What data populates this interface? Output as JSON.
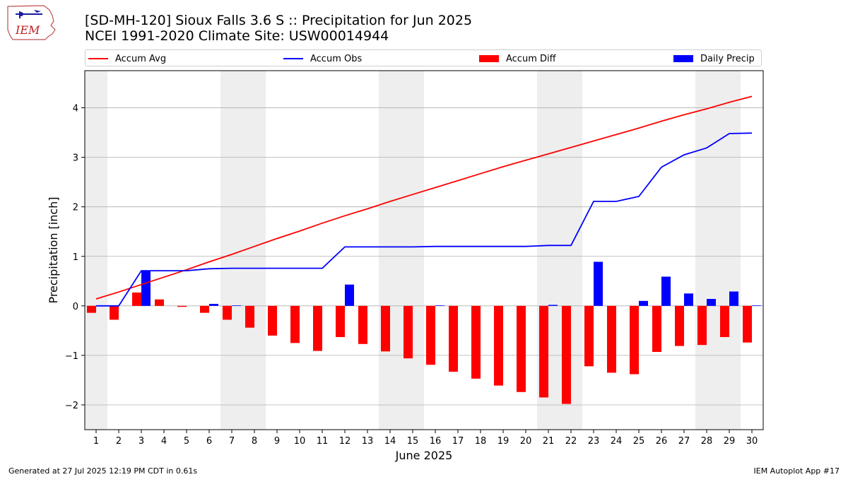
{
  "header": {
    "title_line1": "[SD-MH-120] Sioux Falls 3.6 S :: Precipitation for Jun 2025",
    "title_line2": "NCEI 1991-2020 Climate Site: USW00014944",
    "logo_text": "IEM"
  },
  "footer": {
    "generated": "Generated at 27 Jul 2025 12:19 PM CDT in 0.61s",
    "app": "IEM Autoplot App #17"
  },
  "colors": {
    "avg": "#ff0000",
    "obs": "#0000ff",
    "diff": "#ff0000",
    "daily": "#0000ff",
    "weekend_shade": "#eeeeee",
    "grid": "#b0b0b0"
  },
  "chart_data": {
    "type": "bar",
    "title": "[SD-MH-120] Sioux Falls 3.6 S :: Precipitation for Jun 2025",
    "subtitle": "NCEI 1991-2020 Climate Site: USW00014944",
    "xlabel": "June 2025",
    "ylabel": "Precipitation [inch]",
    "ylim": [
      -2.5,
      4.75
    ],
    "xlim": [
      0.5,
      30.5
    ],
    "yticks": [
      -2,
      -1,
      0,
      1,
      2,
      3,
      4
    ],
    "ytick_labels": [
      "−2",
      "−1",
      "0",
      "1",
      "2",
      "3",
      "4"
    ],
    "grid": "horizontal",
    "legend_position": "top",
    "shaded_ranges": [
      [
        0.5,
        1.5
      ],
      [
        6.5,
        8.5
      ],
      [
        13.5,
        15.5
      ],
      [
        20.5,
        22.5
      ],
      [
        27.5,
        29.5
      ]
    ],
    "x": [
      1,
      2,
      3,
      4,
      5,
      6,
      7,
      8,
      9,
      10,
      11,
      12,
      13,
      14,
      15,
      16,
      17,
      18,
      19,
      20,
      21,
      22,
      23,
      24,
      25,
      26,
      27,
      28,
      29,
      30
    ],
    "series": [
      {
        "name": "Accum Avg",
        "kind": "line",
        "color": "#ff0000",
        "values": [
          0.14,
          0.28,
          0.43,
          0.58,
          0.73,
          0.89,
          1.04,
          1.2,
          1.36,
          1.51,
          1.67,
          1.82,
          1.96,
          2.11,
          2.25,
          2.39,
          2.53,
          2.67,
          2.81,
          2.94,
          3.07,
          3.2,
          3.33,
          3.46,
          3.59,
          3.73,
          3.86,
          3.98,
          4.11,
          4.23
        ]
      },
      {
        "name": "Accum Obs",
        "kind": "line",
        "color": "#0000ff",
        "values": [
          0.0,
          0.0,
          0.71,
          0.71,
          0.71,
          0.75,
          0.76,
          0.76,
          0.76,
          0.76,
          0.76,
          1.19,
          1.19,
          1.19,
          1.19,
          1.2,
          1.2,
          1.2,
          1.2,
          1.2,
          1.22,
          1.22,
          2.11,
          2.11,
          2.21,
          2.8,
          3.05,
          3.19,
          3.48,
          3.49
        ]
      },
      {
        "name": "Accum Diff",
        "kind": "bar",
        "color": "#ff0000",
        "values": [
          -0.14,
          -0.28,
          0.27,
          0.13,
          -0.02,
          -0.14,
          -0.28,
          -0.44,
          -0.6,
          -0.75,
          -0.91,
          -0.63,
          -0.77,
          -0.92,
          -1.06,
          -1.19,
          -1.33,
          -1.47,
          -1.61,
          -1.74,
          -1.85,
          -1.98,
          -1.22,
          -1.35,
          -1.38,
          -0.93,
          -0.81,
          -0.79,
          -0.63,
          -0.74
        ]
      },
      {
        "name": "Daily Precip",
        "kind": "bar",
        "color": "#0000ff",
        "values": [
          0.0,
          0.0,
          0.71,
          0.0,
          0.0,
          0.04,
          0.01,
          0.0,
          0.0,
          0.0,
          0.0,
          0.43,
          0.0,
          0.0,
          0.0,
          0.01,
          0.0,
          0.0,
          0.0,
          0.0,
          0.02,
          0.0,
          0.89,
          0.0,
          0.1,
          0.59,
          0.25,
          0.14,
          0.29,
          0.01
        ]
      }
    ]
  }
}
